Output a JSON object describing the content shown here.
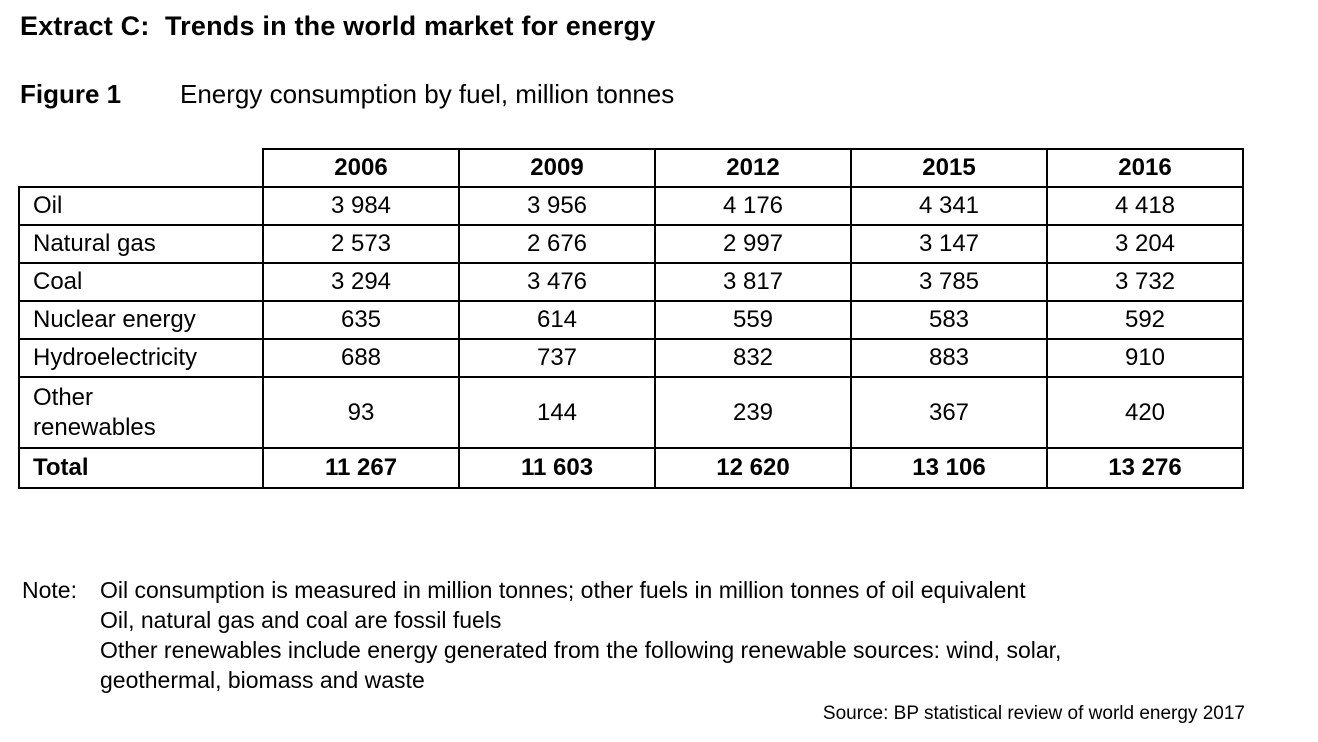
{
  "page": {
    "title": "Extract C:  Trends in the world market for energy",
    "figure_label": "Figure 1",
    "figure_caption": "Energy consumption by fuel, million tonnes"
  },
  "table": {
    "col_headers": [
      "2006",
      "2009",
      "2012",
      "2015",
      "2016"
    ],
    "rows": [
      {
        "label": "Oil",
        "values": [
          "3 984",
          "3 956",
          "4 176",
          "4 341",
          "4 418"
        ]
      },
      {
        "label": "Natural gas",
        "values": [
          "2 573",
          "2 676",
          "2 997",
          "3 147",
          "3 204"
        ]
      },
      {
        "label": "Coal",
        "values": [
          "3 294",
          "3 476",
          "3 817",
          "3 785",
          "3 732"
        ]
      },
      {
        "label": "Nuclear energy",
        "values": [
          "635",
          "614",
          "559",
          "583",
          "592"
        ]
      },
      {
        "label": "Hydroelectricity",
        "values": [
          "688",
          "737",
          "832",
          "883",
          "910"
        ]
      },
      {
        "label": "Other\nrenewables",
        "values": [
          "93",
          "144",
          "239",
          "367",
          "420"
        ]
      }
    ],
    "total_row": {
      "label": "Total",
      "values": [
        "11 267",
        "11 603",
        "12 620",
        "13 106",
        "13 276"
      ]
    }
  },
  "note": {
    "label": "Note:",
    "lines": [
      "Oil consumption is measured in million tonnes; other fuels in million tonnes of oil equivalent",
      "Oil, natural gas and coal are fossil fuels",
      "Other renewables include energy generated from the following renewable sources: wind, solar,",
      "geothermal, biomass and waste"
    ]
  },
  "source": "Source: BP statistical review of world energy 2017",
  "chart_data": {
    "type": "table",
    "title": "Energy consumption by fuel, million tonnes",
    "categories": [
      "2006",
      "2009",
      "2012",
      "2015",
      "2016"
    ],
    "series": [
      {
        "name": "Oil",
        "values": [
          3984,
          3956,
          4176,
          4341,
          4418
        ]
      },
      {
        "name": "Natural gas",
        "values": [
          2573,
          2676,
          2997,
          3147,
          3204
        ]
      },
      {
        "name": "Coal",
        "values": [
          3294,
          3476,
          3817,
          3785,
          3732
        ]
      },
      {
        "name": "Nuclear energy",
        "values": [
          635,
          614,
          559,
          583,
          592
        ]
      },
      {
        "name": "Hydroelectricity",
        "values": [
          688,
          737,
          832,
          883,
          910
        ]
      },
      {
        "name": "Other renewables",
        "values": [
          93,
          144,
          239,
          367,
          420
        ]
      },
      {
        "name": "Total",
        "values": [
          11267,
          11603,
          12620,
          13106,
          13276
        ]
      }
    ]
  }
}
